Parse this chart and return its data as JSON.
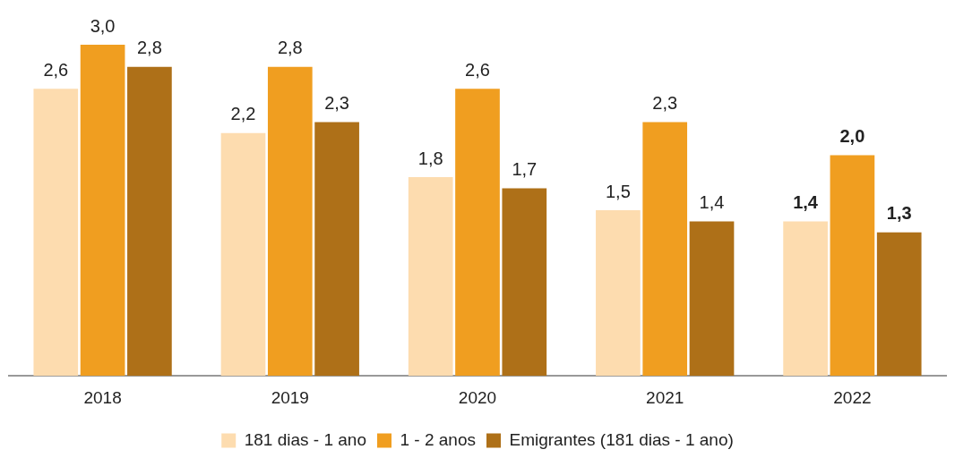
{
  "chart_data": {
    "type": "bar",
    "categories": [
      "2018",
      "2019",
      "2020",
      "2021",
      "2022"
    ],
    "series": [
      {
        "name": "181 dias - 1 ano",
        "color": "#fddcaf",
        "values": [
          2.6,
          2.2,
          1.8,
          1.5,
          1.4
        ],
        "value_labels": [
          "2,6",
          "2,2",
          "1,8",
          "1,5",
          "1,4"
        ]
      },
      {
        "name": "1 - 2 anos",
        "color": "#f09e20",
        "values": [
          3.0,
          2.8,
          2.6,
          2.3,
          2.0
        ],
        "value_labels": [
          "3,0",
          "2,8",
          "2,6",
          "2,3",
          "2,0"
        ]
      },
      {
        "name": "Emigrantes (181 dias - 1 ano)",
        "color": "#ae7018",
        "values": [
          2.8,
          2.3,
          1.7,
          1.4,
          1.3
        ],
        "value_labels": [
          "2,8",
          "2,3",
          "1,7",
          "1,4",
          "1,3"
        ]
      }
    ],
    "grid": false,
    "legend": "bottom"
  }
}
